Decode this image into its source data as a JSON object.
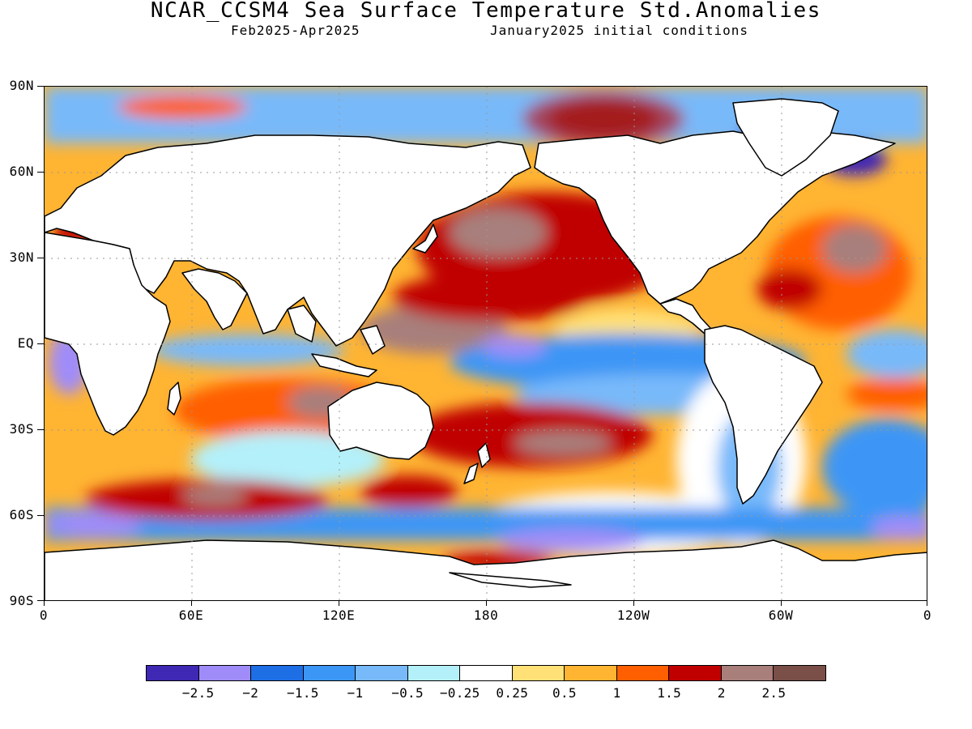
{
  "title": "NCAR_CCSM4 Sea Surface Temperature Std.Anomalies",
  "subtitle_left": "Feb2025-Apr2025",
  "subtitle_right": "January2025 initial conditions",
  "lat_labels": [
    "90N",
    "60N",
    "30N",
    "EQ",
    "30S",
    "60S",
    "90S"
  ],
  "lon_labels": [
    "0",
    "60E",
    "120E",
    "180",
    "120W",
    "60W",
    "0"
  ],
  "colorbar": {
    "colors": [
      "#3f28b4",
      "#a08cf8",
      "#1e6ee6",
      "#3c96f5",
      "#78b9fa",
      "#b4f0fa",
      "#ffffff",
      "#ffe178",
      "#ffb432",
      "#ff5f00",
      "#c00000",
      "#a87f7b",
      "#7a4f47"
    ],
    "labels": [
      "-2.5",
      "-2",
      "-1.5",
      "-1",
      "-0.5",
      "-0.25",
      "0.25",
      "0.5",
      "1",
      "1.5",
      "2",
      "2.5"
    ]
  },
  "map": {
    "land_color": "#ffffff",
    "coastline_color": "#000000",
    "grid_style": "dotted gray at 30° intervals"
  }
}
